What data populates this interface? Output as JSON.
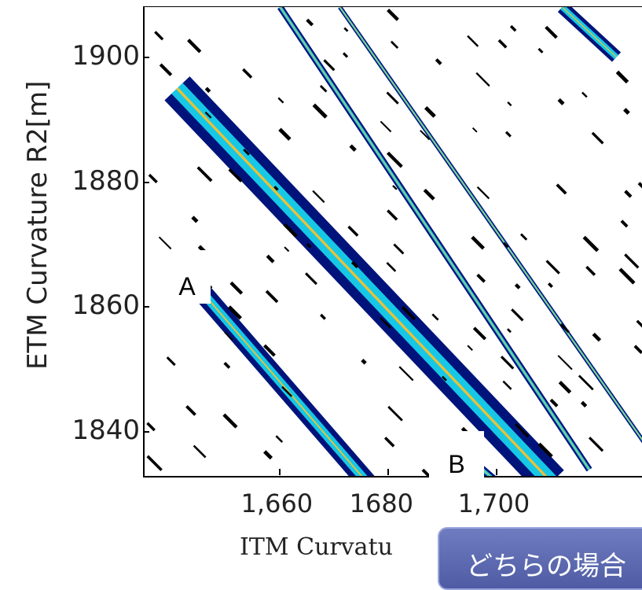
{
  "chart_data": {
    "type": "heatmap",
    "xlabel": "ITM Curvatu",
    "ylabel": "ETM Curvature R2[m]",
    "x_ticks": [
      "1,660",
      "1680",
      "1,700"
    ],
    "y_ticks": [
      "1900",
      "1880",
      "1860",
      "1840"
    ],
    "y_tick_values": [
      1900,
      1880,
      1860,
      1840
    ],
    "x_tick_values": [
      1660,
      1680,
      1700
    ],
    "xlim": [
      1635,
      1727
    ],
    "ylim": [
      1833,
      1908
    ],
    "annotations": [
      "A",
      "B"
    ],
    "colors": {
      "outer": "#00137a",
      "middle": "#16c8e6",
      "inner": "#e8c23a",
      "speckle": "#000000"
    },
    "bands": [
      {
        "x": [
          1641,
          1710
        ],
        "y": [
          1895,
          1832
        ],
        "width": 3.2
      },
      {
        "x": [
          1646,
          1676
        ],
        "y": [
          1862,
          1832
        ],
        "width": 1.8
      },
      {
        "x": [
          1660,
          1717
        ],
        "y": [
          1908,
          1834
        ],
        "width": 0.6
      },
      {
        "x": [
          1671,
          1729
        ],
        "y": [
          1908,
          1836
        ],
        "width": 0.4
      },
      {
        "x": [
          1712,
          1722
        ],
        "y": [
          1908,
          1900
        ],
        "width": 1.2
      },
      {
        "x": [
          1640,
          1643
        ],
        "y": [
          1866,
          1863
        ],
        "width": 0.6
      },
      {
        "x": [
          1696,
          1700
        ],
        "y": [
          1835,
          1832
        ],
        "width": 0.7
      }
    ]
  },
  "callout": {
    "text": "どちらの場合"
  }
}
